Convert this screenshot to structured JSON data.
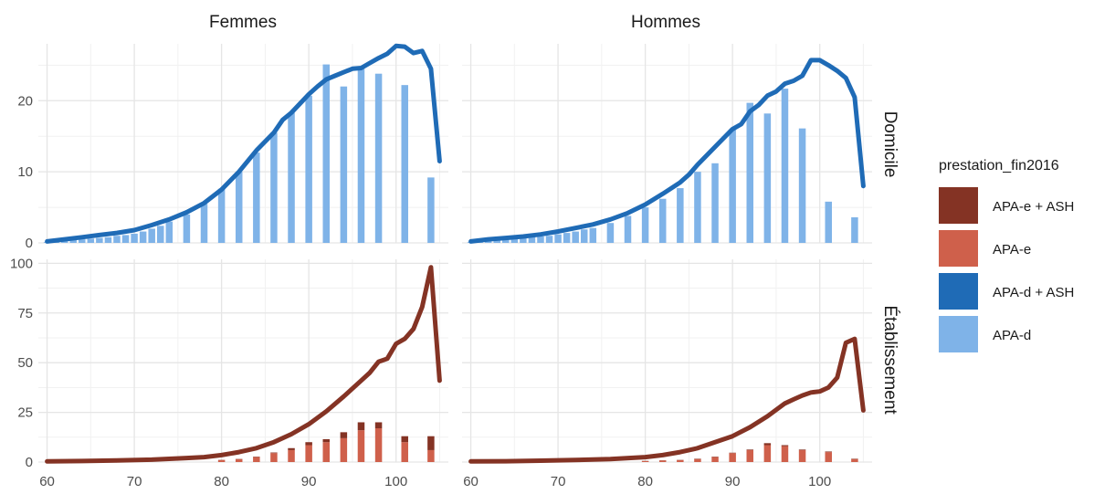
{
  "chart_data": {
    "type": "bar+line",
    "facet_columns": [
      "Femmes",
      "Hommes"
    ],
    "facet_rows": [
      "Domicile",
      "Établissement"
    ],
    "x_ticks": [
      60,
      70,
      80,
      90,
      100
    ],
    "x_range": [
      59,
      106
    ],
    "panel_ylims": {
      "Domicile": [
        0,
        28
      ],
      "Établissement": [
        0,
        102
      ]
    },
    "y_ticks": {
      "Domicile": [
        0,
        10,
        20
      ],
      "Établissement": [
        0,
        25,
        50,
        75,
        100
      ]
    },
    "grid": true,
    "legend": {
      "title": "prestation_fin2016",
      "position": "right",
      "items": [
        {
          "label": "APA-e + ASH",
          "color": "#843324"
        },
        {
          "label": "APA-e",
          "color": "#CF604B"
        },
        {
          "label": "APA-d + ASH",
          "color": "#1F6BB6"
        },
        {
          "label": "APA-d",
          "color": "#7FB3E8"
        }
      ]
    },
    "panels": [
      {
        "col": "Femmes",
        "row": "Domicile",
        "bar_color": "#7FB3E8",
        "line_color": "#1F6BB6",
        "bars": [
          [
            60,
            0.1
          ],
          [
            61,
            0.2
          ],
          [
            62,
            0.3
          ],
          [
            63,
            0.4
          ],
          [
            64,
            0.5
          ],
          [
            65,
            0.6
          ],
          [
            66,
            0.7
          ],
          [
            67,
            0.8
          ],
          [
            68,
            1.0
          ],
          [
            69,
            1.1
          ],
          [
            70,
            1.3
          ],
          [
            71,
            1.6
          ],
          [
            72,
            2.0
          ],
          [
            73,
            2.4
          ],
          [
            74,
            3.0
          ],
          [
            76,
            4.0
          ],
          [
            78,
            5.5
          ],
          [
            80,
            7.6
          ],
          [
            82,
            10.0
          ],
          [
            84,
            12.7
          ],
          [
            86,
            15.5
          ],
          [
            88,
            18.3
          ],
          [
            90,
            20.7
          ],
          [
            92,
            25.1
          ],
          [
            94,
            22.0
          ],
          [
            96,
            24.5
          ],
          [
            98,
            23.8
          ],
          [
            101,
            22.2
          ],
          [
            104,
            9.2
          ]
        ],
        "line": [
          [
            60,
            0.2
          ],
          [
            62,
            0.5
          ],
          [
            64,
            0.8
          ],
          [
            66,
            1.1
          ],
          [
            68,
            1.4
          ],
          [
            70,
            1.8
          ],
          [
            72,
            2.5
          ],
          [
            74,
            3.3
          ],
          [
            76,
            4.3
          ],
          [
            78,
            5.6
          ],
          [
            80,
            7.5
          ],
          [
            82,
            10.0
          ],
          [
            84,
            13.0
          ],
          [
            86,
            15.5
          ],
          [
            87,
            17.3
          ],
          [
            88,
            18.3
          ],
          [
            89,
            19.6
          ],
          [
            90,
            20.9
          ],
          [
            91,
            22.0
          ],
          [
            92,
            23.0
          ],
          [
            93,
            23.5
          ],
          [
            94,
            24.0
          ],
          [
            95,
            24.5
          ],
          [
            96,
            24.6
          ],
          [
            97,
            25.3
          ],
          [
            98,
            26.0
          ],
          [
            99,
            26.6
          ],
          [
            100,
            27.7
          ],
          [
            101,
            27.6
          ],
          [
            102,
            26.7
          ],
          [
            103,
            27.0
          ],
          [
            104,
            24.5
          ],
          [
            105,
            11.5
          ]
        ]
      },
      {
        "col": "Hommes",
        "row": "Domicile",
        "bar_color": "#7FB3E8",
        "line_color": "#1F6BB6",
        "bars": [
          [
            60,
            0.1
          ],
          [
            61,
            0.2
          ],
          [
            62,
            0.3
          ],
          [
            63,
            0.4
          ],
          [
            64,
            0.5
          ],
          [
            65,
            0.6
          ],
          [
            66,
            0.7
          ],
          [
            67,
            0.8
          ],
          [
            68,
            0.9
          ],
          [
            69,
            1.0
          ],
          [
            70,
            1.2
          ],
          [
            71,
            1.4
          ],
          [
            72,
            1.6
          ],
          [
            73,
            1.9
          ],
          [
            74,
            2.1
          ],
          [
            76,
            2.8
          ],
          [
            78,
            3.8
          ],
          [
            80,
            5.0
          ],
          [
            82,
            6.2
          ],
          [
            84,
            7.7
          ],
          [
            86,
            10.0
          ],
          [
            88,
            11.2
          ],
          [
            90,
            15.9
          ],
          [
            92,
            19.7
          ],
          [
            94,
            18.2
          ],
          [
            96,
            21.7
          ],
          [
            98,
            16.1
          ],
          [
            101,
            5.8
          ],
          [
            104,
            3.6
          ]
        ],
        "line": [
          [
            60,
            0.2
          ],
          [
            62,
            0.5
          ],
          [
            64,
            0.7
          ],
          [
            66,
            0.9
          ],
          [
            68,
            1.2
          ],
          [
            70,
            1.6
          ],
          [
            72,
            2.1
          ],
          [
            74,
            2.6
          ],
          [
            76,
            3.3
          ],
          [
            78,
            4.2
          ],
          [
            80,
            5.4
          ],
          [
            82,
            6.9
          ],
          [
            84,
            8.5
          ],
          [
            85,
            9.6
          ],
          [
            86,
            11.0
          ],
          [
            88,
            13.5
          ],
          [
            90,
            16.0
          ],
          [
            91,
            16.7
          ],
          [
            92,
            18.5
          ],
          [
            93,
            19.4
          ],
          [
            94,
            20.7
          ],
          [
            95,
            21.3
          ],
          [
            96,
            22.4
          ],
          [
            97,
            22.8
          ],
          [
            98,
            23.5
          ],
          [
            99,
            25.7
          ],
          [
            100,
            25.7
          ],
          [
            101,
            25.0
          ],
          [
            102,
            24.2
          ],
          [
            103,
            23.2
          ],
          [
            104,
            20.5
          ],
          [
            105,
            8.0
          ]
        ]
      },
      {
        "col": "Femmes",
        "row": "Établissement",
        "bar_color": "#CF604B",
        "bar_top_color": "#843324",
        "line_color": "#843324",
        "bars": [
          [
            80,
            1.0
          ],
          [
            82,
            1.5
          ],
          [
            84,
            2.5
          ],
          [
            86,
            4.5
          ],
          [
            88,
            6.0
          ],
          [
            90,
            8.5
          ],
          [
            92,
            10.0
          ],
          [
            94,
            12.0
          ],
          [
            96,
            16.0
          ],
          [
            98,
            17.0
          ],
          [
            101,
            10.0
          ],
          [
            104,
            6.0
          ]
        ],
        "bars_top": [
          [
            80,
            0.1
          ],
          [
            82,
            0.1
          ],
          [
            84,
            0.2
          ],
          [
            86,
            0.3
          ],
          [
            88,
            1.0
          ],
          [
            90,
            1.5
          ],
          [
            92,
            1.5
          ],
          [
            94,
            3.0
          ],
          [
            96,
            4.0
          ],
          [
            98,
            3.0
          ],
          [
            101,
            3.0
          ],
          [
            104,
            7.0
          ]
        ],
        "line": [
          [
            60,
            0.3
          ],
          [
            64,
            0.5
          ],
          [
            68,
            0.8
          ],
          [
            72,
            1.2
          ],
          [
            76,
            2.0
          ],
          [
            78,
            2.5
          ],
          [
            80,
            3.5
          ],
          [
            82,
            5.0
          ],
          [
            84,
            7.0
          ],
          [
            86,
            10.0
          ],
          [
            88,
            14.0
          ],
          [
            90,
            19.0
          ],
          [
            92,
            25.5
          ],
          [
            94,
            33.0
          ],
          [
            96,
            41.0
          ],
          [
            97,
            45.0
          ],
          [
            98,
            50.5
          ],
          [
            99,
            52.0
          ],
          [
            100,
            59.5
          ],
          [
            101,
            62.0
          ],
          [
            102,
            67.0
          ],
          [
            103,
            78.0
          ],
          [
            104,
            98.0
          ],
          [
            105,
            41.0
          ]
        ]
      },
      {
        "col": "Hommes",
        "row": "Établissement",
        "bar_color": "#CF604B",
        "bar_top_color": "#843324",
        "line_color": "#843324",
        "bars": [
          [
            80,
            0.5
          ],
          [
            82,
            0.8
          ],
          [
            84,
            1.0
          ],
          [
            86,
            1.5
          ],
          [
            88,
            2.5
          ],
          [
            90,
            4.5
          ],
          [
            92,
            6.0
          ],
          [
            94,
            8.5
          ],
          [
            96,
            8.0
          ],
          [
            98,
            6.0
          ],
          [
            101,
            5.0
          ],
          [
            104,
            1.5
          ]
        ],
        "bars_top": [
          [
            80,
            0.1
          ],
          [
            82,
            0.1
          ],
          [
            84,
            0.1
          ],
          [
            86,
            0.2
          ],
          [
            88,
            0.2
          ],
          [
            90,
            0.2
          ],
          [
            92,
            0.3
          ],
          [
            94,
            1.0
          ],
          [
            96,
            0.5
          ],
          [
            98,
            0.3
          ],
          [
            101,
            0.3
          ],
          [
            104,
            0.2
          ]
        ],
        "line": [
          [
            60,
            0.3
          ],
          [
            64,
            0.4
          ],
          [
            68,
            0.7
          ],
          [
            72,
            1.0
          ],
          [
            76,
            1.5
          ],
          [
            80,
            2.5
          ],
          [
            82,
            3.5
          ],
          [
            84,
            5.0
          ],
          [
            86,
            7.0
          ],
          [
            88,
            10.0
          ],
          [
            90,
            13.0
          ],
          [
            92,
            17.5
          ],
          [
            94,
            23.0
          ],
          [
            96,
            29.5
          ],
          [
            97,
            31.5
          ],
          [
            98,
            33.5
          ],
          [
            99,
            35.0
          ],
          [
            100,
            35.5
          ],
          [
            101,
            37.5
          ],
          [
            102,
            42.5
          ],
          [
            103,
            60.0
          ],
          [
            104,
            62.0
          ],
          [
            105,
            26.0
          ]
        ]
      }
    ]
  }
}
